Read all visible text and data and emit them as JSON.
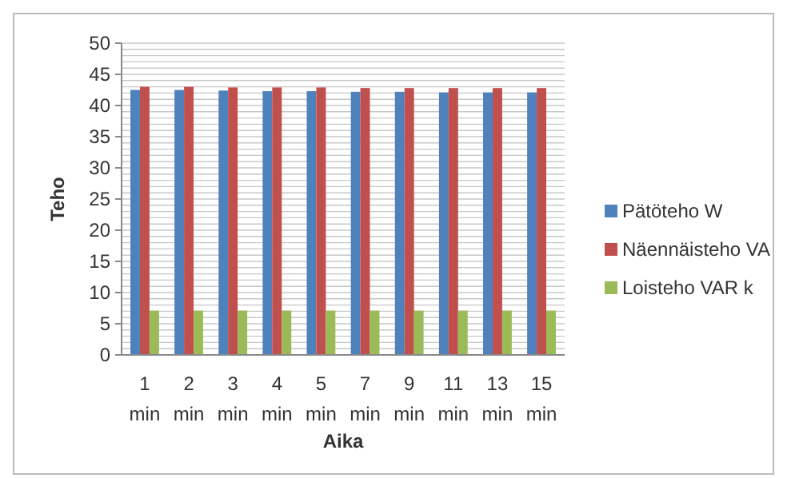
{
  "chart_data": {
    "type": "bar",
    "xlabel": "Aika",
    "ylabel": "Teho",
    "categories": [
      "1 min",
      "2 min",
      "3 min",
      "4 min",
      "5 min",
      "7 min",
      "9 min",
      "11 min",
      "13 min",
      "15 min"
    ],
    "series": [
      {
        "name": "Pätöteho W",
        "color": "#4f81bd",
        "values": [
          42.5,
          42.5,
          42.4,
          42.3,
          42.3,
          42.2,
          42.2,
          42.1,
          42.1,
          42.1
        ]
      },
      {
        "name": "Näennäisteho VA",
        "color": "#c0504d",
        "values": [
          43,
          43,
          42.9,
          42.9,
          42.9,
          42.8,
          42.8,
          42.8,
          42.8,
          42.8
        ]
      },
      {
        "name": "Loisteho VAR k",
        "color": "#9bbb59",
        "values": [
          7.1,
          7.1,
          7.1,
          7.1,
          7.1,
          7.1,
          7.1,
          7.1,
          7.1,
          7.1
        ]
      }
    ],
    "ylim": [
      0,
      50
    ],
    "yticks": [
      0,
      {
        "value": 1,
        "label": null
      },
      {
        "value": 2,
        "label": null
      },
      {
        "value": 3,
        "label": null
      },
      {
        "value": 4,
        "label": null
      },
      5,
      {
        "value": 6,
        "label": null
      },
      {
        "value": 7,
        "label": null
      },
      {
        "value": 8,
        "label": null
      },
      {
        "value": 9,
        "label": null
      },
      10,
      {
        "value": 11,
        "label": null
      },
      {
        "value": 12,
        "label": null
      },
      {
        "value": 13,
        "label": null
      },
      {
        "value": 14,
        "label": null
      },
      15,
      {
        "value": 16,
        "label": null
      },
      {
        "value": 17,
        "label": null
      },
      {
        "value": 18,
        "label": null
      },
      {
        "value": 19,
        "label": null
      },
      20,
      {
        "value": 21,
        "label": null
      },
      {
        "value": 22,
        "label": null
      },
      {
        "value": 23,
        "label": null
      },
      {
        "value": 24,
        "label": null
      },
      25,
      {
        "value": 26,
        "label": null
      },
      {
        "value": 27,
        "label": null
      },
      {
        "value": 28,
        "label": null
      },
      {
        "value": 29,
        "label": null
      },
      30,
      {
        "value": 31,
        "label": null
      },
      {
        "value": 32,
        "label": null
      },
      {
        "value": 33,
        "label": null
      },
      {
        "value": 34,
        "label": null
      },
      35,
      {
        "value": 36,
        "label": null
      },
      {
        "value": 37,
        "label": null
      },
      {
        "value": 38,
        "label": null
      },
      {
        "value": 39,
        "label": null
      },
      40,
      {
        "value": 41,
        "label": null
      },
      {
        "value": 42,
        "label": null
      },
      {
        "value": 43,
        "label": null
      },
      {
        "value": 44,
        "label": null
      },
      45,
      {
        "value": 46,
        "label": null
      },
      {
        "value": 47,
        "label": null
      },
      {
        "value": 48,
        "label": null
      },
      {
        "value": 49,
        "label": null
      },
      50
    ],
    "grid": "y",
    "legend": "right"
  }
}
